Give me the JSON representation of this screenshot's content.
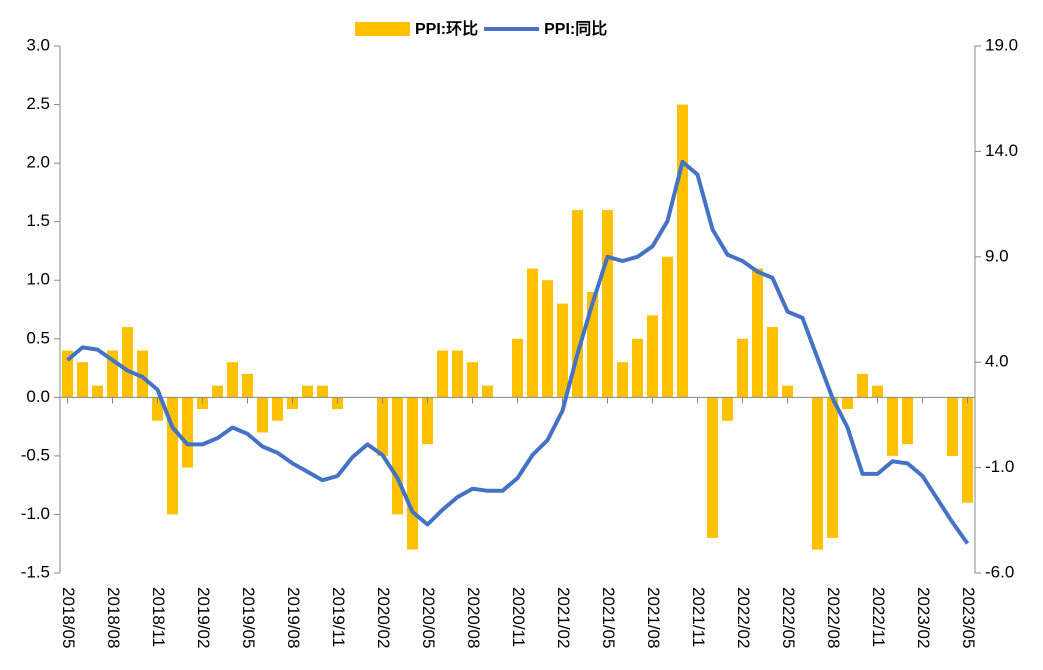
{
  "chart_data": {
    "type": "bar_line",
    "categories": [
      "2018/05",
      null,
      null,
      "2018/08",
      null,
      null,
      "2018/11",
      null,
      null,
      "2019/02",
      null,
      null,
      "2019/05",
      null,
      null,
      "2019/08",
      null,
      null,
      "2019/11",
      null,
      null,
      "2020/02",
      null,
      null,
      "2020/05",
      null,
      null,
      "2020/08",
      null,
      null,
      "2020/11",
      null,
      null,
      "2021/02",
      null,
      null,
      "2021/05",
      null,
      null,
      "2021/08",
      null,
      null,
      "2021/11",
      null,
      null,
      "2022/02",
      null,
      null,
      "2022/05",
      null,
      null,
      "2022/08",
      null,
      null,
      "2022/11",
      null,
      null,
      "2023/02",
      null,
      null,
      "2023/05"
    ],
    "series": [
      {
        "name": "PPI:环比",
        "color": "#FFC000",
        "type": "bar",
        "values": [
          0.4,
          0.3,
          0.1,
          0.4,
          0.6,
          0.4,
          -0.2,
          -1.0,
          -0.6,
          -0.1,
          0.1,
          0.3,
          0.2,
          -0.3,
          -0.2,
          -0.1,
          0.1,
          0.1,
          -0.1,
          0.0,
          0.0,
          -0.5,
          -1.0,
          -1.3,
          -0.4,
          0.4,
          0.4,
          0.3,
          0.1,
          0.0,
          0.5,
          1.1,
          1.0,
          0.8,
          1.6,
          0.9,
          1.6,
          0.3,
          0.5,
          0.7,
          1.2,
          2.5,
          0.0,
          -1.2,
          -0.2,
          0.5,
          1.1,
          0.6,
          0.1,
          0.0,
          -1.3,
          -1.2,
          -0.1,
          0.2,
          0.1,
          -0.5,
          -0.4,
          0.0,
          0.0,
          -0.5,
          -0.9
        ]
      },
      {
        "name": "PPI:同比",
        "color": "#4472C4",
        "type": "line",
        "axis": "y2",
        "values": [
          4.1,
          4.7,
          4.6,
          4.1,
          3.6,
          3.3,
          2.7,
          0.9,
          0.1,
          0.1,
          0.4,
          0.9,
          0.6,
          0.0,
          -0.3,
          -0.8,
          -1.2,
          -1.6,
          -1.4,
          -0.5,
          0.1,
          -0.4,
          -1.5,
          -3.1,
          -3.7,
          -3.0,
          -2.4,
          -2.0,
          -2.1,
          -2.1,
          -1.5,
          -0.4,
          0.3,
          1.7,
          4.4,
          6.8,
          9.0,
          8.8,
          9.0,
          9.5,
          10.7,
          13.5,
          12.9,
          10.3,
          9.1,
          8.8,
          8.3,
          8.0,
          6.4,
          6.1,
          4.2,
          2.3,
          0.9,
          -1.3,
          -1.3,
          -0.7,
          -0.8,
          -1.4,
          -2.5,
          -3.6,
          -4.6
        ]
      }
    ],
    "ylim": [
      -1.5,
      3.0
    ],
    "yticks": [
      -1.5,
      {
        "value": -1.0,
        "label": "-1.0"
      },
      -0.5,
      {
        "value": 0.0,
        "label": "0.0"
      },
      0.5,
      {
        "value": 1.0,
        "label": "1.0"
      },
      1.5,
      {
        "value": 2.0,
        "label": "2.0"
      },
      2.5,
      {
        "value": 3.0,
        "label": "3.0"
      }
    ],
    "y2lim": [
      -6.0,
      19.0
    ],
    "y2ticks": [
      {
        "value": -6.0,
        "label": "-6.0"
      },
      {
        "value": -1.0,
        "label": "-1.0"
      },
      {
        "value": 4.0,
        "label": "4.0"
      },
      {
        "value": 9.0,
        "label": "9.0"
      },
      {
        "value": 14.0,
        "label": "14.0"
      },
      {
        "value": 19.0,
        "label": "19.0"
      }
    ],
    "legend": "top"
  }
}
